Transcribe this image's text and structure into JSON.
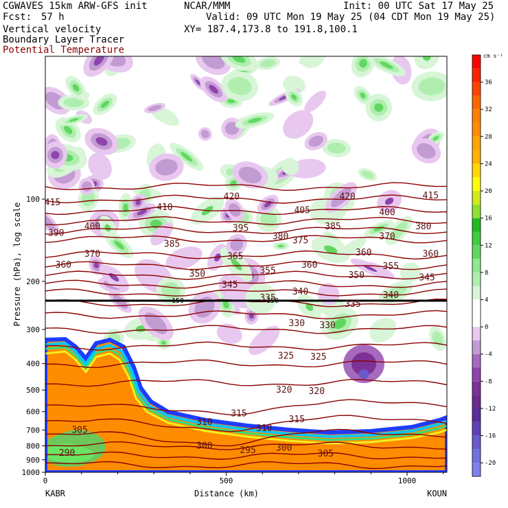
{
  "header": {
    "model": "CGWAVES 15km ARW-GFS init",
    "fcst_label": "Fcst:",
    "fcst_value": "57 h",
    "org": "NCAR/MMM",
    "init": "Init: 00 UTC Sat 17 May 25",
    "valid": "Valid: 09 UTC Mon 19 May 25 (04 CDT Mon 19 May 25)",
    "field1": "Vertical velocity",
    "field2": "Boundary Layer Tracer",
    "field3": "Potential Temperature",
    "xy": "XY= 187.4,173.8 to 191.8,100.1"
  },
  "colors": {
    "theta_line": "#8b0000",
    "pbl_tracer_front": "#ff8c00"
  },
  "chart_data": {
    "type": "heatmap",
    "xlabel": "Distance (km)",
    "ylabel": "Pressure (hPa), log scale",
    "xlim": [
      0,
      1110
    ],
    "ylim": [
      1000,
      30
    ],
    "y_scale": "log",
    "x_ticks": [
      0,
      500,
      1000
    ],
    "y_ticks": [
      100,
      200,
      300,
      400,
      500,
      600,
      700,
      800,
      900,
      1000
    ],
    "endpoint_left": "KABR",
    "endpoint_right": "KOUN",
    "colorbar": {
      "unit": "cm s⁻¹",
      "ticks": [
        -20,
        -16,
        -12,
        -8,
        -4,
        0,
        4,
        8,
        12,
        16,
        20,
        24,
        28,
        32,
        36
      ],
      "levels": [
        -22,
        -20,
        -18,
        -16,
        -14,
        -12,
        -10,
        -8,
        -6,
        -4,
        -2,
        0,
        2,
        4,
        6,
        8,
        10,
        12,
        14,
        16,
        18,
        20,
        22,
        24,
        26,
        28,
        30,
        32,
        34,
        36,
        38,
        40
      ],
      "colors": [
        "#8080ee",
        "#7070e0",
        "#6a5acd",
        "#6040b8",
        "#5a2d9a",
        "#6b2a8e",
        "#7b3294",
        "#8e44ad",
        "#a569bd",
        "#c39bd3",
        "#e8c8ef",
        "#ffffff",
        "#ffffff",
        "#d8f5d8",
        "#b0eeb0",
        "#90e890",
        "#60d860",
        "#40cc40",
        "#20bb20",
        "#90e030",
        "#d0e820",
        "#ffff00",
        "#ffd700",
        "#ffb000",
        "#ffa500",
        "#ff8c00",
        "#ff7f00",
        "#ff6600",
        "#ff4500",
        "#ff2200",
        "#ff0000"
      ]
    },
    "tropopause_level_hpa": 150,
    "tropopause_labels": [
      "150",
      "150"
    ],
    "theta_labels": [
      {
        "text": "415",
        "x": 20,
        "p": 103
      },
      {
        "text": "410",
        "x": 330,
        "p": 107
      },
      {
        "text": "420",
        "x": 515,
        "p": 98
      },
      {
        "text": "420",
        "x": 835,
        "p": 98
      },
      {
        "text": "415",
        "x": 1065,
        "p": 97
      },
      {
        "text": "400",
        "x": 130,
        "p": 126
      },
      {
        "text": "390",
        "x": 30,
        "p": 133
      },
      {
        "text": "405",
        "x": 710,
        "p": 110
      },
      {
        "text": "395",
        "x": 540,
        "p": 128
      },
      {
        "text": "380",
        "x": 650,
        "p": 137
      },
      {
        "text": "385",
        "x": 795,
        "p": 126
      },
      {
        "text": "400",
        "x": 945,
        "p": 112
      },
      {
        "text": "380",
        "x": 1045,
        "p": 126
      },
      {
        "text": "375",
        "x": 705,
        "p": 142
      },
      {
        "text": "370",
        "x": 945,
        "p": 137
      },
      {
        "text": "385",
        "x": 350,
        "p": 146
      },
      {
        "text": "370",
        "x": 130,
        "p": 159
      },
      {
        "text": "365",
        "x": 525,
        "p": 162
      },
      {
        "text": "360",
        "x": 880,
        "p": 157
      },
      {
        "text": "360",
        "x": 1065,
        "p": 159
      },
      {
        "text": "360",
        "x": 50,
        "p": 174
      },
      {
        "text": "350",
        "x": 420,
        "p": 188
      },
      {
        "text": "355",
        "x": 615,
        "p": 183
      },
      {
        "text": "360",
        "x": 730,
        "p": 174
      },
      {
        "text": "355",
        "x": 955,
        "p": 176
      },
      {
        "text": "350",
        "x": 860,
        "p": 190
      },
      {
        "text": "345",
        "x": 1055,
        "p": 194
      },
      {
        "text": "345",
        "x": 510,
        "p": 206
      },
      {
        "text": "340",
        "x": 705,
        "p": 218
      },
      {
        "text": "335",
        "x": 615,
        "p": 230
      },
      {
        "text": "340",
        "x": 955,
        "p": 225
      },
      {
        "text": "335",
        "x": 850,
        "p": 242
      },
      {
        "text": "330",
        "x": 695,
        "p": 285
      },
      {
        "text": "330",
        "x": 780,
        "p": 290
      },
      {
        "text": "325",
        "x": 665,
        "p": 375
      },
      {
        "text": "325",
        "x": 755,
        "p": 378
      },
      {
        "text": "320",
        "x": 660,
        "p": 500
      },
      {
        "text": "320",
        "x": 750,
        "p": 505
      },
      {
        "text": "315",
        "x": 535,
        "p": 610
      },
      {
        "text": "315",
        "x": 695,
        "p": 640
      },
      {
        "text": "310",
        "x": 440,
        "p": 655
      },
      {
        "text": "310",
        "x": 605,
        "p": 690
      },
      {
        "text": "305",
        "x": 95,
        "p": 700
      },
      {
        "text": "300",
        "x": 440,
        "p": 800
      },
      {
        "text": "295",
        "x": 560,
        "p": 830
      },
      {
        "text": "300",
        "x": 660,
        "p": 815
      },
      {
        "text": "305",
        "x": 775,
        "p": 855
      },
      {
        "text": "290",
        "x": 60,
        "p": 850
      }
    ]
  }
}
